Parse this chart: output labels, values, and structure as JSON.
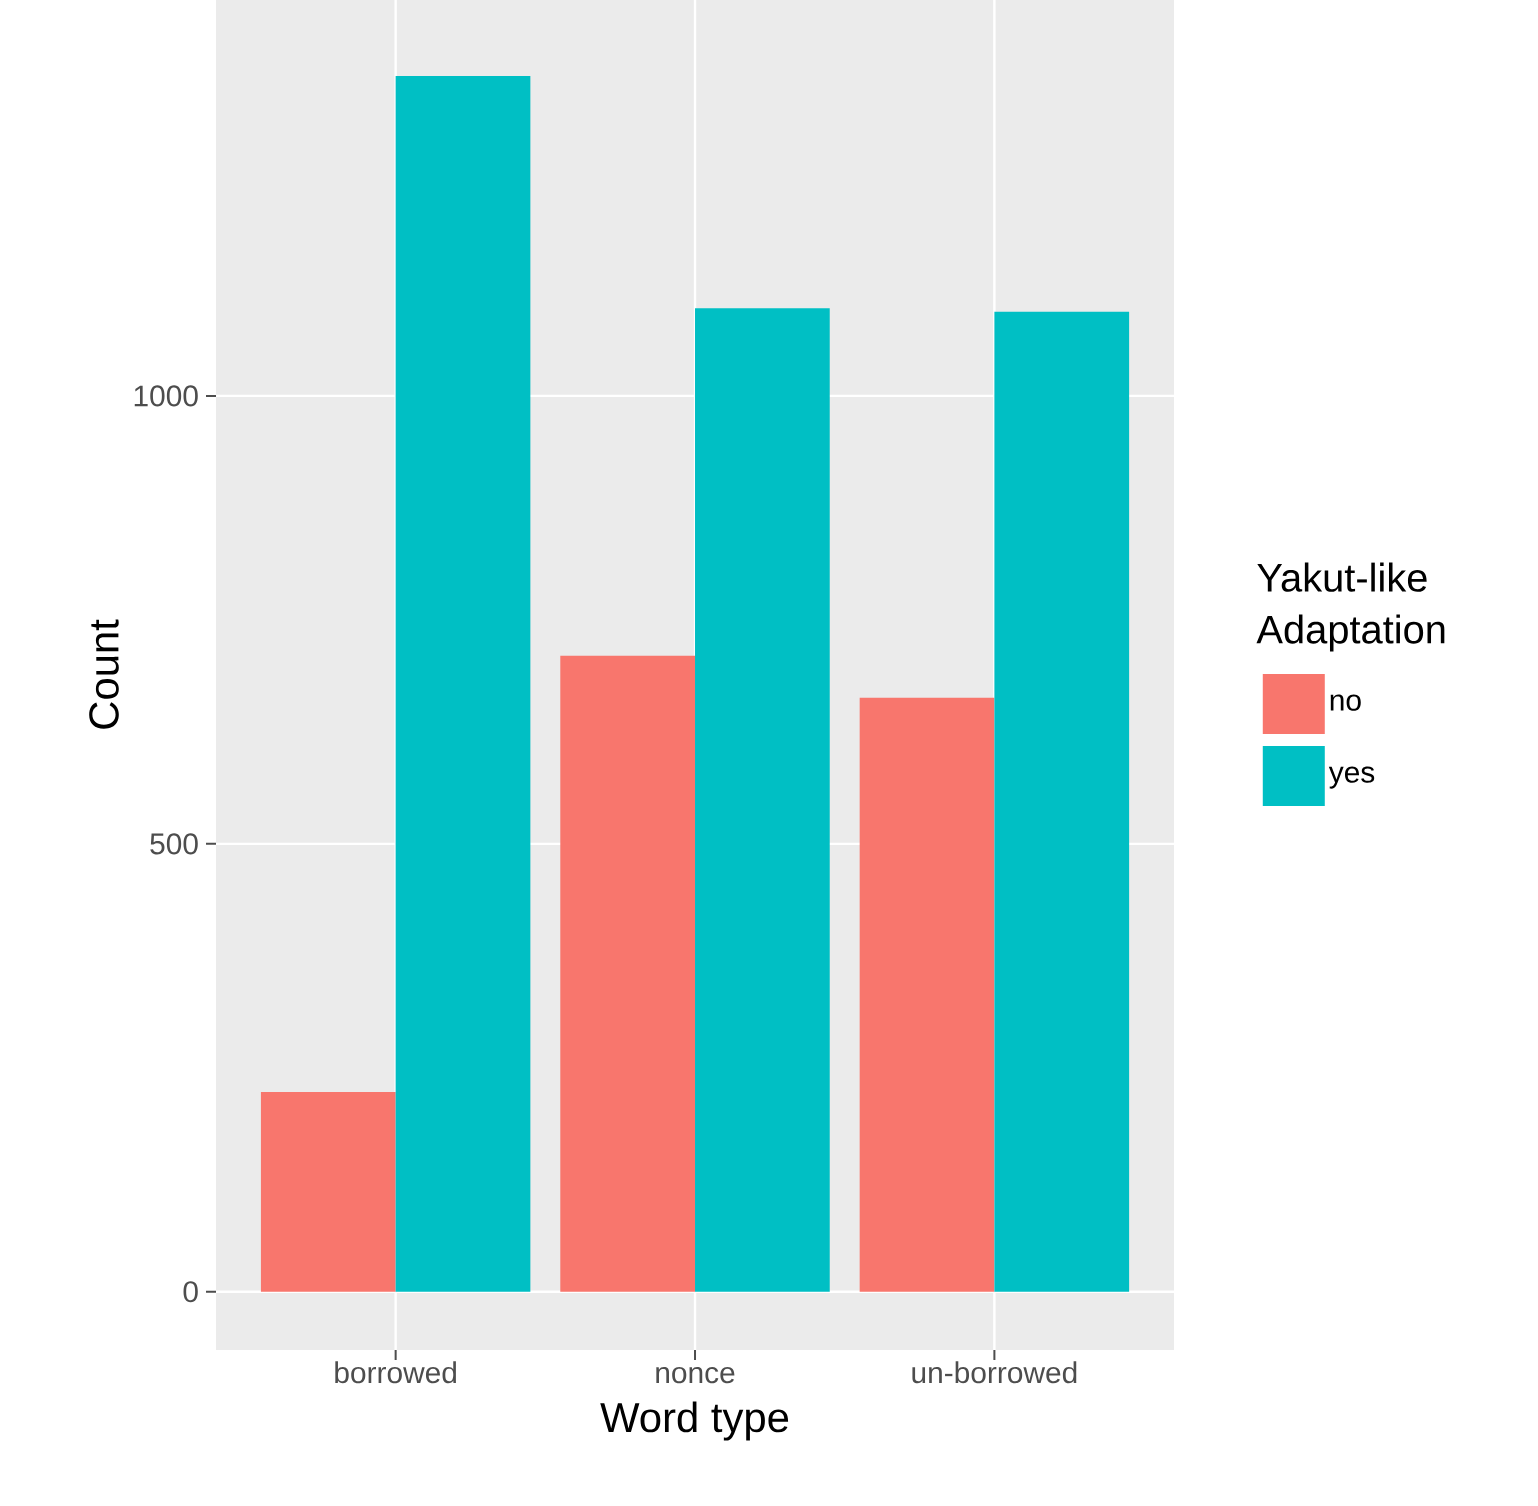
{
  "chart_data": {
    "type": "bar",
    "xlabel": "Word type",
    "ylabel": "Count",
    "legend_title": "Yakut-like Adaptation",
    "categories": [
      "borrowed",
      "nonce",
      "un-borrowed"
    ],
    "series": [
      {
        "name": "no",
        "color": "#f8766d",
        "values": [
          223,
          710,
          663
        ]
      },
      {
        "name": "yes",
        "color": "#00bfc4",
        "values": [
          1357,
          1098,
          1094
        ]
      }
    ],
    "ylim": [
      -65,
      1442
    ],
    "yticks": [
      0,
      500,
      1000
    ],
    "grid": true,
    "legend": "right"
  }
}
